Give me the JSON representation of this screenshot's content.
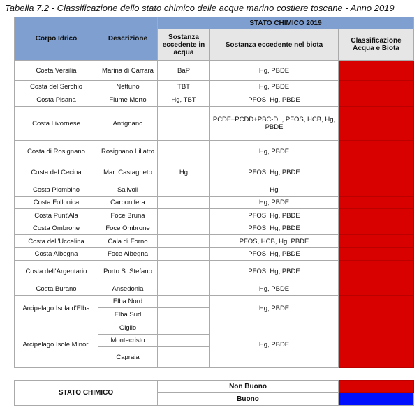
{
  "title": "Tabella 7.2 - Classificazione dello stato chimico delle acque marino costiere toscane - Anno 2019",
  "header": {
    "corpo": "Corpo Idrico",
    "descrizione": "Descrizione",
    "group": "STATO CHIMICO 2019",
    "acqua": "Sostanza eccedente in acqua",
    "biota": "Sostanza eccedente nel biota",
    "classificazione": "Classificazione Acqua e Biota"
  },
  "colors": {
    "non_buono": "#d90000",
    "buono": "#0010ff"
  },
  "rows": [
    {
      "corpo": "Costa Versilia",
      "descrizione": [
        "Marina di Carrara"
      ],
      "acqua": [
        "BaP"
      ],
      "biota": "Hg, PBDE",
      "classificazione": "Non Buono"
    },
    {
      "corpo": "Costa del Serchio",
      "descrizione": [
        "Nettuno"
      ],
      "acqua": [
        "TBT"
      ],
      "biota": "Hg, PBDE",
      "classificazione": "Non Buono"
    },
    {
      "corpo": "Costa Pisana",
      "descrizione": [
        "Fiume Morto"
      ],
      "acqua": [
        "Hg, TBT"
      ],
      "biota": "PFOS, Hg, PBDE",
      "classificazione": "Non Buono"
    },
    {
      "corpo": "Costa Livornese",
      "descrizione": [
        "Antignano"
      ],
      "acqua": [
        ""
      ],
      "biota": "PCDF+PCDD+PBC-DL, PFOS, HCB, Hg, PBDE",
      "classificazione": "Non Buono"
    },
    {
      "corpo": "Costa di Rosignano",
      "descrizione": [
        "Rosignano Lillatro"
      ],
      "acqua": [
        ""
      ],
      "biota": "Hg, PBDE",
      "classificazione": "Non Buono"
    },
    {
      "corpo": "Costa del Cecina",
      "descrizione": [
        "Mar. Castagneto"
      ],
      "acqua": [
        "Hg"
      ],
      "biota": "PFOS, Hg, PBDE",
      "classificazione": "Non Buono"
    },
    {
      "corpo": "Costa Piombino",
      "descrizione": [
        "Salivoli"
      ],
      "acqua": [
        ""
      ],
      "biota": "Hg",
      "classificazione": "Non Buono"
    },
    {
      "corpo": "Costa Follonica",
      "descrizione": [
        "Carbonifera"
      ],
      "acqua": [
        ""
      ],
      "biota": "Hg, PBDE",
      "classificazione": "Non Buono"
    },
    {
      "corpo": "Costa Punt'Ala",
      "descrizione": [
        "Foce Bruna"
      ],
      "acqua": [
        ""
      ],
      "biota": "PFOS, Hg, PBDE",
      "classificazione": "Non Buono"
    },
    {
      "corpo": "Costa Ombrone",
      "descrizione": [
        "Foce Ombrone"
      ],
      "acqua": [
        ""
      ],
      "biota": "PFOS, Hg, PBDE",
      "classificazione": "Non Buono"
    },
    {
      "corpo": "Costa dell'Uccelina",
      "descrizione": [
        "Cala di Forno"
      ],
      "acqua": [
        ""
      ],
      "biota": "PFOS, HCB, Hg, PBDE",
      "classificazione": "Non Buono"
    },
    {
      "corpo": "Costa Albegna",
      "descrizione": [
        "Foce Albegna"
      ],
      "acqua": [
        ""
      ],
      "biota": "PFOS, Hg, PBDE",
      "classificazione": "Non Buono"
    },
    {
      "corpo": "Costa dell'Argentario",
      "descrizione": [
        "Porto S. Stefano"
      ],
      "acqua": [
        ""
      ],
      "biota": "PFOS, Hg, PBDE",
      "classificazione": "Non Buono"
    },
    {
      "corpo": "Costa Burano",
      "descrizione": [
        "Ansedonia"
      ],
      "acqua": [
        ""
      ],
      "biota": "Hg, PBDE",
      "classificazione": "Non Buono"
    },
    {
      "corpo": "Arcipelago Isola d'Elba",
      "descrizione": [
        "Elba Nord",
        "Elba Sud"
      ],
      "acqua": [
        "",
        ""
      ],
      "biota": "Hg, PBDE",
      "classificazione": "Non Buono"
    },
    {
      "corpo": "Arcipelago Isole Minori",
      "descrizione": [
        "Giglio",
        "Montecristo",
        "Capraia"
      ],
      "acqua": [
        "",
        "",
        ""
      ],
      "biota": "Hg, PBDE",
      "classificazione": "Non Buono"
    }
  ],
  "legend": {
    "label": "STATO CHIMICO",
    "items": [
      {
        "label": "Non Buono",
        "color": "#d90000"
      },
      {
        "label": "Buono",
        "color": "#0010ff"
      }
    ]
  }
}
